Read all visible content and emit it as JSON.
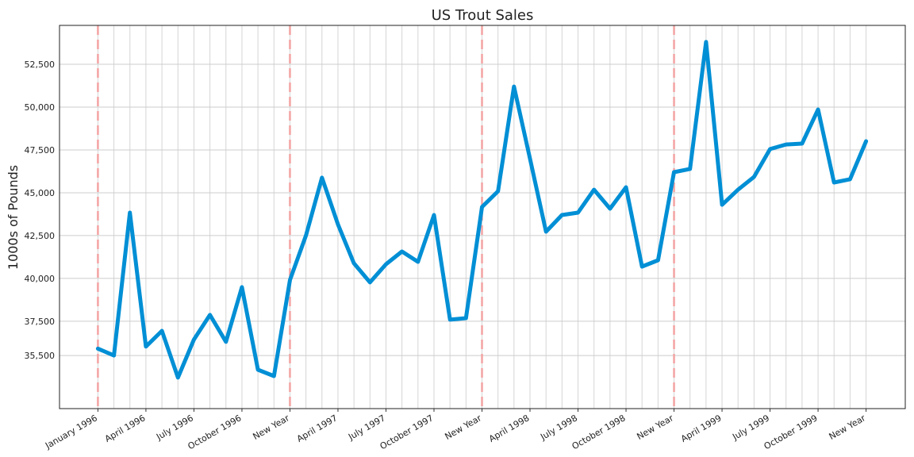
{
  "chart_data": {
    "type": "line",
    "title": "US Trout Sales",
    "y_label": "1000s of Pounds",
    "x": [
      "1996-01",
      "1996-02",
      "1996-03",
      "1996-04",
      "1996-05",
      "1996-06",
      "1996-07",
      "1996-08",
      "1996-09",
      "1996-10",
      "1996-11",
      "1996-12",
      "1997-01",
      "1997-02",
      "1997-03",
      "1997-04",
      "1997-05",
      "1997-06",
      "1997-07",
      "1997-08",
      "1997-09",
      "1997-10",
      "1997-11",
      "1997-12",
      "1998-01",
      "1998-02",
      "1998-03",
      "1998-04",
      "1998-05",
      "1998-06",
      "1998-07",
      "1998-08",
      "1998-09",
      "1998-10",
      "1998-11",
      "1998-12",
      "1999-01",
      "1999-02",
      "1999-03",
      "1999-04",
      "1999-05",
      "1999-06",
      "1999-07",
      "1999-08",
      "1999-09",
      "1999-10",
      "1999-11",
      "1999-12",
      "2000-01"
    ],
    "series": [
      {
        "name": "Trout sales",
        "color": "#008fd5",
        "values": [
          35900,
          35500,
          43840,
          36020,
          36940,
          34210,
          36430,
          37870,
          36300,
          39490,
          34670,
          34300,
          39910,
          42500,
          45880,
          43150,
          40880,
          39770,
          40830,
          41570,
          40970,
          43700,
          37590,
          37680,
          44170,
          45090,
          51200,
          46990,
          42730,
          43700,
          43840,
          45180,
          44070,
          45320,
          40690,
          41060,
          46200,
          46390,
          53800,
          44300,
          45180,
          45930,
          47550,
          47820,
          47870,
          49860,
          45600,
          45790,
          48010
        ]
      }
    ],
    "ylim": [
      32400,
      54770
    ],
    "yticks": [
      {
        "value": 35500,
        "label": "35,500"
      },
      {
        "value": 37500,
        "label": "37,500"
      },
      {
        "value": 40000,
        "label": "40,000"
      },
      {
        "value": 42500,
        "label": "42,500"
      },
      {
        "value": 45000,
        "label": "45,000"
      },
      {
        "value": 47500,
        "label": "47,500"
      },
      {
        "value": 50000,
        "label": "50,000"
      },
      {
        "value": 52500,
        "label": "52,500"
      }
    ],
    "xticks": [
      {
        "value": "1996-01",
        "label": "January 1996"
      },
      {
        "value": "1996-04",
        "label": "April 1996"
      },
      {
        "value": "1996-07",
        "label": "July 1996"
      },
      {
        "value": "1996-10",
        "label": "October 1996"
      },
      {
        "value": "1997-01",
        "label": "New Year"
      },
      {
        "value": "1997-04",
        "label": "April 1997"
      },
      {
        "value": "1997-07",
        "label": "July 1997"
      },
      {
        "value": "1997-10",
        "label": "October 1997"
      },
      {
        "value": "1998-01",
        "label": "New Year"
      },
      {
        "value": "1998-04",
        "label": "April 1998"
      },
      {
        "value": "1998-07",
        "label": "July 1998"
      },
      {
        "value": "1998-10",
        "label": "October 1998"
      },
      {
        "value": "1999-01",
        "label": "New Year"
      },
      {
        "value": "1999-04",
        "label": "April 1999"
      },
      {
        "value": "1999-07",
        "label": "July 1999"
      },
      {
        "value": "1999-10",
        "label": "October 1999"
      },
      {
        "value": "2000-01",
        "label": "New Year"
      }
    ],
    "vlines": [
      "1996-01",
      "1997-01",
      "1998-01",
      "1999-01"
    ],
    "vline_color": "#f4a3a3",
    "grid": true
  }
}
